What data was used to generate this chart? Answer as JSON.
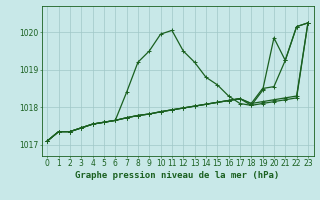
{
  "bg_color": "#c8e8e8",
  "grid_color": "#a0c8c8",
  "line_color": "#1a6020",
  "xlabel": "Graphe pression niveau de la mer (hPa)",
  "xlim": [
    -0.5,
    23.5
  ],
  "ylim": [
    1016.7,
    1020.7
  ],
  "yticks": [
    1017,
    1018,
    1019,
    1020
  ],
  "xtick_labels": [
    "0",
    "1",
    "2",
    "3",
    "4",
    "5",
    "6",
    "7",
    "8",
    "9",
    "10",
    "11",
    "12",
    "13",
    "14",
    "15",
    "16",
    "17",
    "18",
    "19",
    "20",
    "21",
    "22",
    "23"
  ],
  "series": [
    [
      1017.1,
      1017.35,
      1017.35,
      1017.45,
      1017.55,
      1017.6,
      1017.65,
      1018.4,
      1019.2,
      1019.5,
      1019.95,
      1020.05,
      1019.5,
      1019.2,
      1018.8,
      1018.6,
      1018.3,
      1018.1,
      1018.05,
      1018.45,
      1019.85,
      1019.25,
      1020.15,
      1020.25
    ],
    [
      1017.1,
      1017.35,
      1017.35,
      1017.45,
      1017.55,
      1017.6,
      1017.65,
      1017.72,
      1017.78,
      1017.82,
      1017.88,
      1017.93,
      1017.98,
      1018.03,
      1018.08,
      1018.13,
      1018.18,
      1018.23,
      1018.1,
      1018.15,
      1018.2,
      1018.25,
      1018.3,
      1020.25
    ],
    [
      1017.1,
      1017.35,
      1017.35,
      1017.45,
      1017.55,
      1017.6,
      1017.65,
      1017.72,
      1017.78,
      1017.82,
      1017.88,
      1017.93,
      1017.98,
      1018.03,
      1018.08,
      1018.13,
      1018.18,
      1018.23,
      1018.1,
      1018.5,
      1018.55,
      1019.25,
      1020.15,
      1020.25
    ],
    [
      1017.1,
      1017.35,
      1017.35,
      1017.45,
      1017.55,
      1017.6,
      1017.65,
      1017.72,
      1017.78,
      1017.82,
      1017.88,
      1017.93,
      1017.98,
      1018.03,
      1018.08,
      1018.13,
      1018.18,
      1018.23,
      1018.05,
      1018.1,
      1018.15,
      1018.2,
      1018.25,
      1020.25
    ]
  ],
  "marker_size": 2.5,
  "line_width": 0.9,
  "tick_fontsize": 5.5,
  "xlabel_fontsize": 6.5,
  "fig_width": 3.2,
  "fig_height": 2.0,
  "dpi": 100
}
